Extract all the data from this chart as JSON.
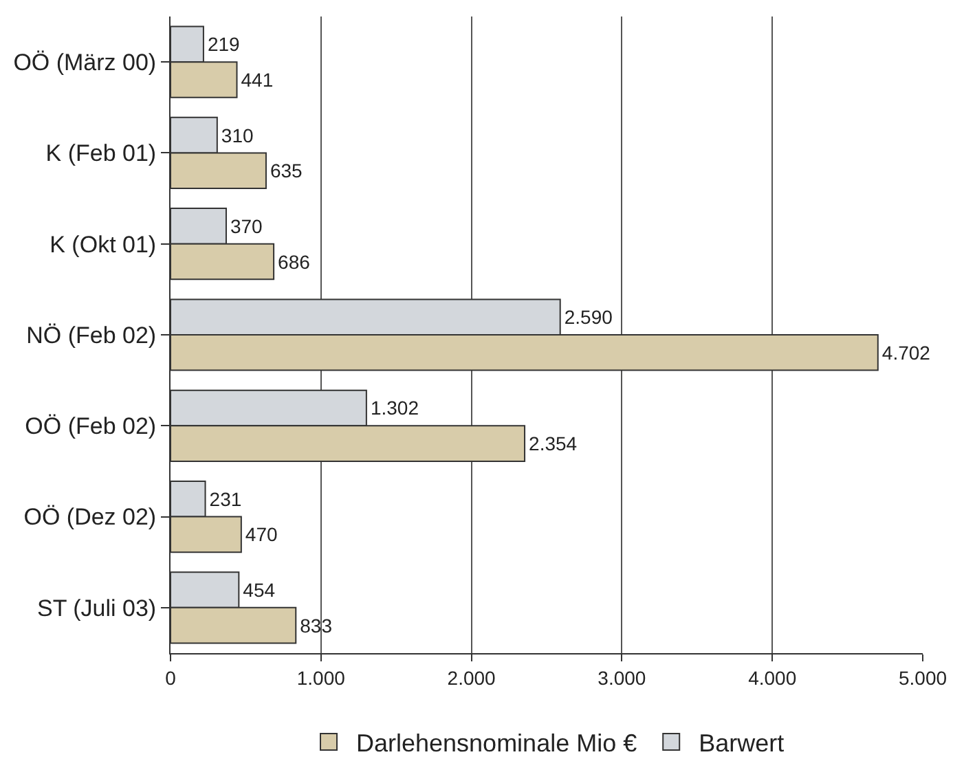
{
  "chart_data": {
    "type": "bar",
    "orientation": "horizontal",
    "categories": [
      "OÖ (März 00)",
      "K (Feb 01)",
      "K (Okt 01)",
      "NÖ (Feb 02)",
      "OÖ (Feb 02)",
      "OÖ (Dez 02)",
      "ST (Juli 03)"
    ],
    "series": [
      {
        "name": "Darlehensnominale Mio €",
        "color": "#d8ccaa",
        "values": [
          441,
          635,
          686,
          4702,
          2354,
          470,
          833
        ],
        "value_labels": [
          "441",
          "635",
          "686",
          "4.702",
          "2.354",
          "470",
          "833"
        ]
      },
      {
        "name": "Barwert",
        "color": "#d3d7dc",
        "values": [
          219,
          310,
          370,
          2590,
          1302,
          231,
          454
        ],
        "value_labels": [
          "219",
          "310",
          "370",
          "2.590",
          "1.302",
          "231",
          "454"
        ]
      }
    ],
    "xlim": [
      0,
      5000
    ],
    "xticks": [
      0,
      {
        "value": 1000,
        "label": "1.000"
      },
      {
        "value": 2000,
        "label": "2.000"
      },
      {
        "value": 3000,
        "label": "3.000"
      },
      {
        "value": 4000,
        "label": "4.000"
      },
      {
        "value": 5000,
        "label": "5.000"
      }
    ],
    "grid": "x",
    "legend": "bottom"
  }
}
